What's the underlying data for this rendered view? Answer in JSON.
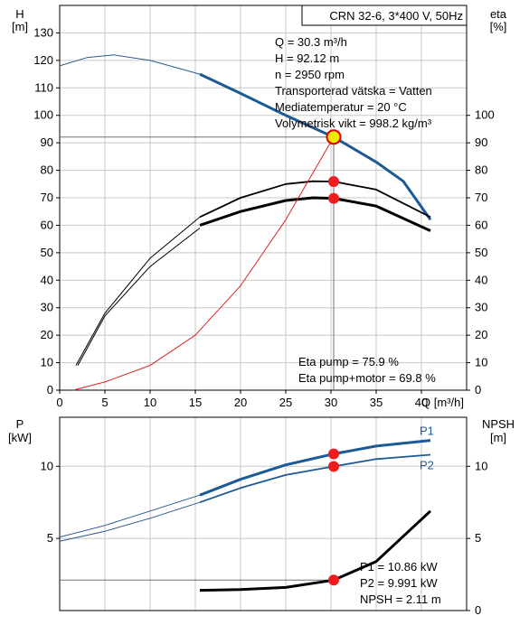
{
  "chart_data": [
    {
      "type": "line",
      "title": "CRN 32-6, 3*400 V, 50Hz",
      "xlabel": "Q [m³/h]",
      "ylabel_left": [
        "H",
        "[m]"
      ],
      "ylabel_right": [
        "eta",
        "[%]"
      ],
      "xlim": [
        0,
        45
      ],
      "ylim_left": [
        0,
        140
      ],
      "ylim_right": [
        0,
        140
      ],
      "x_ticks": [
        0,
        5,
        10,
        15,
        20,
        25,
        30,
        35,
        40
      ],
      "y_ticks_left": [
        0,
        10,
        20,
        30,
        40,
        50,
        60,
        70,
        80,
        90,
        100,
        110,
        120,
        130
      ],
      "y_ticks_right": [
        0,
        10,
        20,
        30,
        40,
        50,
        60,
        70,
        80,
        90,
        100
      ],
      "grid": true,
      "info_lines": [
        "Q = 30.3 m³/h",
        "H = 92.12 m",
        "n = 2950 rpm",
        "Transporterad vätska = Vatten",
        "Mediatemperatur = 20 °C",
        "Volymetrisk vikt = 998.2 kg/m³"
      ],
      "eta_lines": [
        "Eta pump = 75.9 %",
        "Eta pump+motor = 69.8 %"
      ],
      "series": [
        {
          "key": "head_full",
          "color": "#2a5a8a",
          "points": [
            [
              0,
              118
            ],
            [
              3,
              121
            ],
            [
              6,
              122
            ],
            [
              10,
              120
            ],
            [
              15.5,
              115
            ]
          ]
        },
        {
          "key": "head_op",
          "color": "#1c5a96",
          "points": [
            [
              15.5,
              115
            ],
            [
              20,
              108
            ],
            [
              25,
              100
            ],
            [
              30.3,
              92.12
            ],
            [
              35,
              83
            ],
            [
              38,
              76
            ],
            [
              41,
              62
            ]
          ]
        },
        {
          "key": "eta_pump_thin",
          "color": "#000000",
          "points": [
            [
              1.8,
              9
            ],
            [
              5,
              28
            ],
            [
              10,
              48
            ],
            [
              15.5,
              63
            ]
          ]
        },
        {
          "key": "eta_pump",
          "color": "#000000",
          "points": [
            [
              15.5,
              63
            ],
            [
              20,
              70
            ],
            [
              25,
              75
            ],
            [
              28,
              76
            ],
            [
              30.3,
              75.9
            ],
            [
              35,
              73
            ],
            [
              41,
              63
            ]
          ]
        },
        {
          "key": "eta_total_thin",
          "color": "#000000",
          "points": [
            [
              2,
              9
            ],
            [
              5,
              27
            ],
            [
              10,
              45
            ],
            [
              15.5,
              59
            ]
          ]
        },
        {
          "key": "eta_total",
          "color": "#000000",
          "points": [
            [
              15.5,
              60
            ],
            [
              20,
              65
            ],
            [
              25,
              69
            ],
            [
              28,
              70
            ],
            [
              30.3,
              69.8
            ],
            [
              35,
              67
            ],
            [
              41,
              58
            ]
          ]
        },
        {
          "key": "system_curve",
          "color": "#e02020",
          "points": [
            [
              1.5,
              0
            ],
            [
              5,
              3
            ],
            [
              10,
              9
            ],
            [
              15,
              20
            ],
            [
              20,
              38
            ],
            [
              25,
              62
            ],
            [
              30.3,
              92.12
            ]
          ]
        }
      ],
      "markers": [
        {
          "x": 30.3,
          "y": 92.12,
          "type": "duty"
        },
        {
          "x": 30.3,
          "y": 75.9,
          "type": "point"
        },
        {
          "x": 30.3,
          "y": 69.8,
          "type": "point"
        }
      ]
    },
    {
      "type": "line",
      "ylabel_left": [
        "P",
        "[kW]"
      ],
      "ylabel_right": [
        "NPSH",
        "[m]"
      ],
      "xlim": [
        0,
        45
      ],
      "ylim_left": [
        0,
        13.4
      ],
      "ylim_right": [
        0,
        13.4
      ],
      "y_ticks_left": [
        5,
        10
      ],
      "y_ticks_right": [
        0,
        5,
        10
      ],
      "grid": true,
      "info_lines": [
        "P1 = 10.86 kW",
        "P2 = 9.991 kW",
        "NPSH = 2.11 m"
      ],
      "series": [
        {
          "name": "P1",
          "key": "p1_thin",
          "color": "#2a5a8a",
          "points": [
            [
              0,
              5.1
            ],
            [
              5,
              5.9
            ],
            [
              10,
              6.9
            ],
            [
              15.5,
              8.0
            ]
          ]
        },
        {
          "name": "P1",
          "key": "p1",
          "color": "#1c5a96",
          "points": [
            [
              15.5,
              8.0
            ],
            [
              20,
              9.1
            ],
            [
              25,
              10.1
            ],
            [
              30.3,
              10.86
            ],
            [
              35,
              11.4
            ],
            [
              41,
              11.8
            ]
          ]
        },
        {
          "name": "P2",
          "key": "p2_thin",
          "color": "#2a5a8a",
          "points": [
            [
              0,
              4.8
            ],
            [
              5,
              5.5
            ],
            [
              10,
              6.4
            ],
            [
              15.5,
              7.5
            ]
          ]
        },
        {
          "name": "P2",
          "key": "p2",
          "color": "#1c5a96",
          "points": [
            [
              15.5,
              7.5
            ],
            [
              20,
              8.5
            ],
            [
              25,
              9.4
            ],
            [
              30.3,
              9.991
            ],
            [
              35,
              10.5
            ],
            [
              41,
              10.8
            ]
          ]
        },
        {
          "key": "npsh",
          "color": "#000000",
          "points": [
            [
              15.5,
              1.4
            ],
            [
              20,
              1.45
            ],
            [
              25,
              1.6
            ],
            [
              30.3,
              2.11
            ],
            [
              35,
              3.4
            ],
            [
              41,
              6.9
            ]
          ]
        }
      ],
      "markers": [
        {
          "x": 30.3,
          "y": 10.86,
          "type": "point"
        },
        {
          "x": 30.3,
          "y": 9.991,
          "type": "point"
        },
        {
          "x": 30.3,
          "y": 2.11,
          "type": "point"
        }
      ]
    }
  ]
}
